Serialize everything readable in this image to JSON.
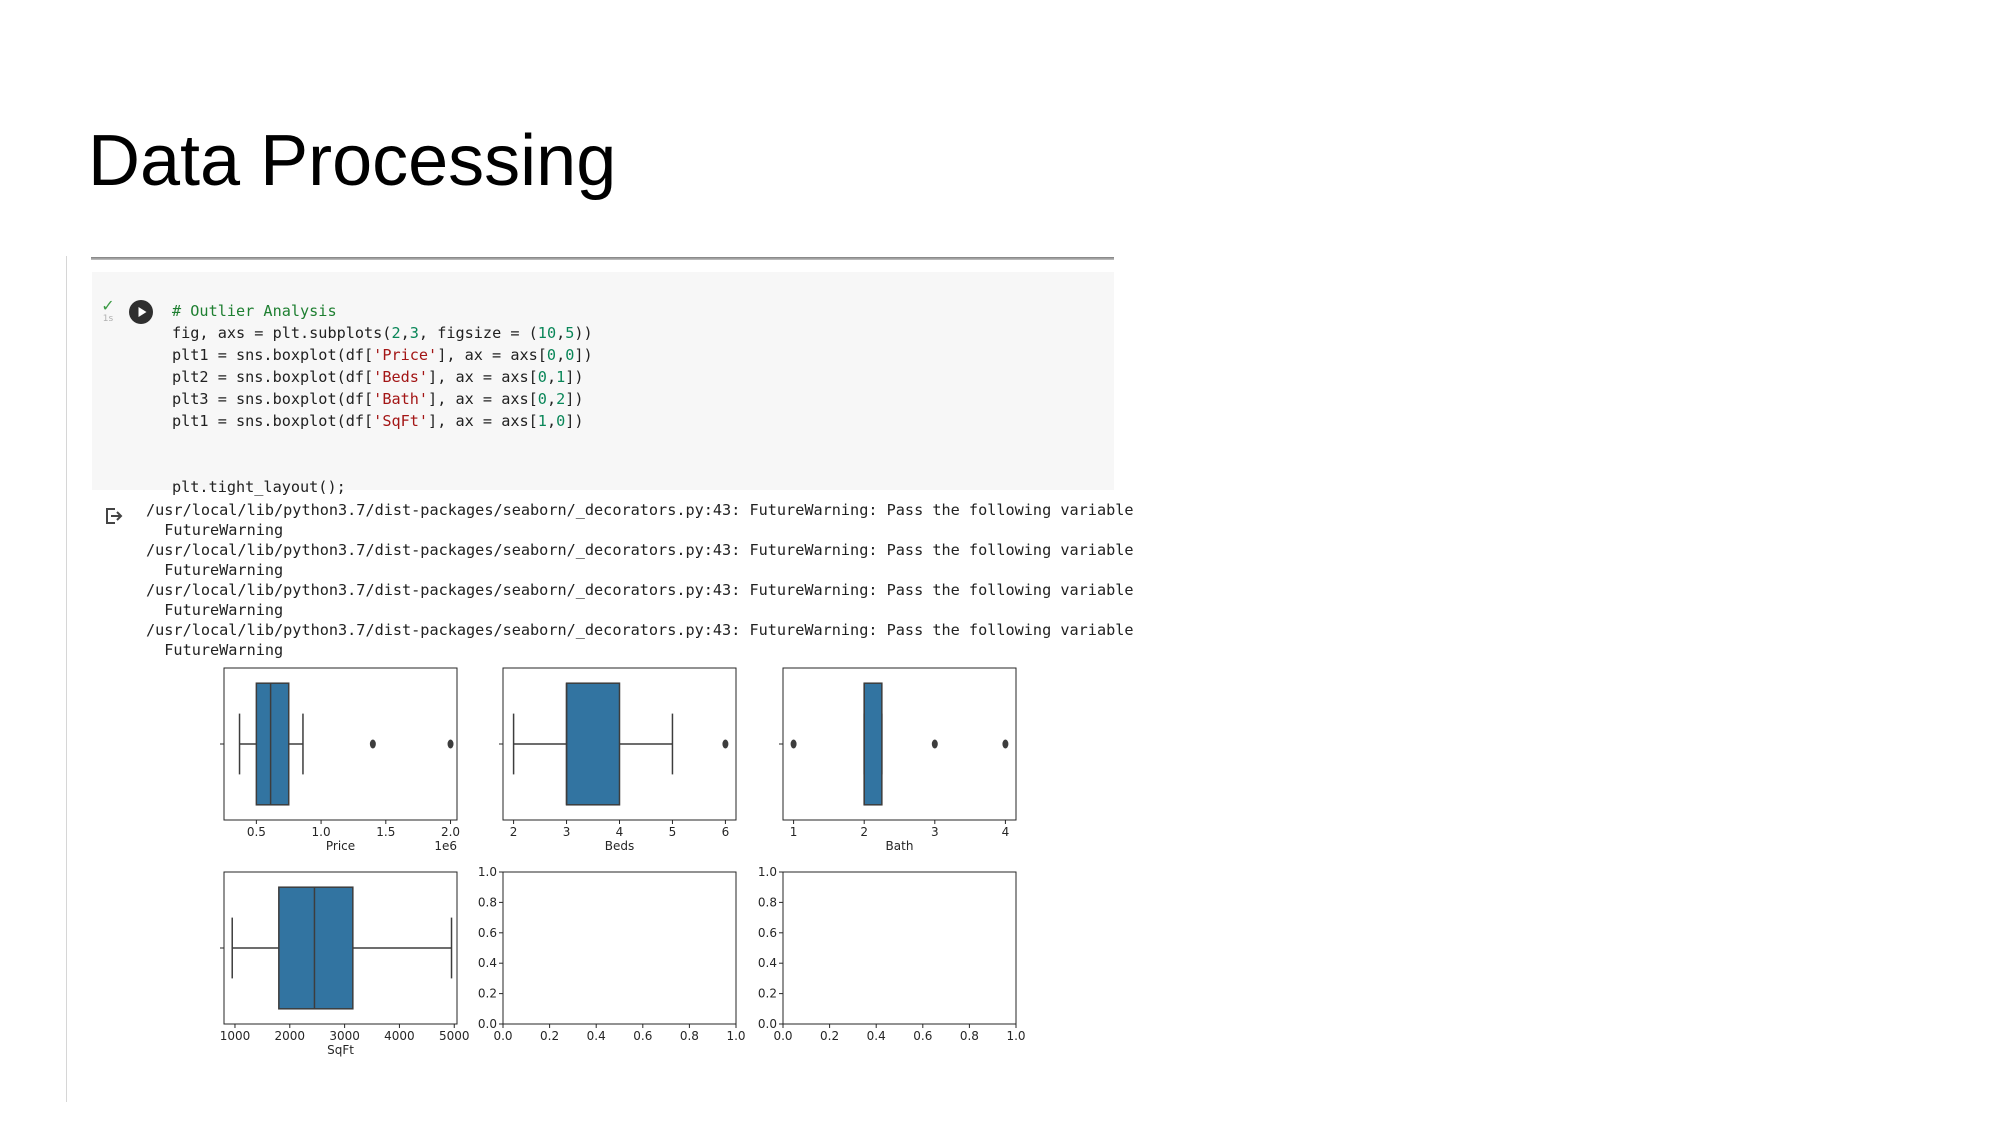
{
  "slide": {
    "title": "Data Processing"
  },
  "cell": {
    "status_icon": "check-icon",
    "exec_time": "1s",
    "run_icon": "play-circle-icon",
    "output_icon": "output-redirect-icon",
    "code": {
      "l1": "# Outlier Analysis",
      "l2a": "fig, axs = plt.subplots(",
      "l2n1": "2",
      "l2b": ",",
      "l2n2": "3",
      "l2c": ", figsize = (",
      "l2n3": "10",
      "l2d": ",",
      "l2n4": "5",
      "l2e": "))",
      "l3a": "plt1 = sns.boxplot(df[",
      "l3s": "'Price'",
      "l3b": "], ax = axs[",
      "l3n1": "0",
      "l3c": ",",
      "l3n2": "0",
      "l3d": "])",
      "l4a": "plt2 = sns.boxplot(df[",
      "l4s": "'Beds'",
      "l4b": "], ax = axs[",
      "l4n1": "0",
      "l4c": ",",
      "l4n2": "1",
      "l4d": "])",
      "l5a": "plt3 = sns.boxplot(df[",
      "l5s": "'Bath'",
      "l5b": "], ax = axs[",
      "l5n1": "0",
      "l5c": ",",
      "l5n2": "2",
      "l5d": "])",
      "l6a": "plt1 = sns.boxplot(df[",
      "l6s": "'SqFt'",
      "l6b": "], ax = axs[",
      "l6n1": "1",
      "l6c": ",",
      "l6n2": "0",
      "l6d": "])",
      "l9": "plt.tight_layout();"
    },
    "output_lines": [
      "/usr/local/lib/python3.7/dist-packages/seaborn/_decorators.py:43: FutureWarning: Pass the following variable",
      "  FutureWarning",
      "/usr/local/lib/python3.7/dist-packages/seaborn/_decorators.py:43: FutureWarning: Pass the following variable",
      "  FutureWarning",
      "/usr/local/lib/python3.7/dist-packages/seaborn/_decorators.py:43: FutureWarning: Pass the following variable",
      "  FutureWarning",
      "/usr/local/lib/python3.7/dist-packages/seaborn/_decorators.py:43: FutureWarning: Pass the following variable",
      "  FutureWarning"
    ]
  },
  "chart_data": [
    {
      "type": "box",
      "xlabel": "Price",
      "offset_text": "1e6",
      "xlim": [
        0.25,
        2.05
      ],
      "xticks": [
        0.5,
        1.0,
        1.5,
        2.0
      ],
      "xtick_labels": [
        "0.5",
        "1.0",
        "1.5",
        "2.0"
      ],
      "box": {
        "whisker_low": 0.37,
        "q1": 0.5,
        "median": 0.61,
        "q3": 0.75,
        "whisker_high": 0.86
      },
      "outliers": [
        1.4,
        2.0
      ],
      "color": "#3274a1"
    },
    {
      "type": "box",
      "xlabel": "Beds",
      "xlim": [
        1.8,
        6.2
      ],
      "xticks": [
        2,
        3,
        4,
        5,
        6
      ],
      "xtick_labels": [
        "2",
        "3",
        "4",
        "5",
        "6"
      ],
      "box": {
        "whisker_low": 2,
        "q1": 3,
        "median": 3,
        "q3": 4,
        "whisker_high": 5
      },
      "outliers": [
        6
      ],
      "color": "#3274a1"
    },
    {
      "type": "box",
      "xlabel": "Bath",
      "xlim": [
        0.85,
        4.15
      ],
      "xticks": [
        1,
        2,
        3,
        4
      ],
      "xtick_labels": [
        "1",
        "2",
        "3",
        "4"
      ],
      "box": {
        "whisker_low": 2,
        "q1": 2,
        "median": 2,
        "q3": 2.25,
        "whisker_high": 2.25
      },
      "outliers": [
        1,
        3,
        4
      ],
      "color": "#3274a1"
    },
    {
      "type": "box",
      "xlabel": "SqFt",
      "xlim": [
        800,
        5050
      ],
      "xticks": [
        1000,
        2000,
        3000,
        4000,
        5000
      ],
      "xtick_labels": [
        "1000",
        "2000",
        "3000",
        "4000",
        "5000"
      ],
      "box": {
        "whisker_low": 950,
        "q1": 1800,
        "median": 2450,
        "q3": 3150,
        "whisker_high": 4950
      },
      "outliers": [],
      "color": "#3274a1"
    },
    {
      "type": "empty",
      "xlim": [
        0,
        1
      ],
      "ylim": [
        0,
        1
      ],
      "xticks": [
        0,
        0.2,
        0.4,
        0.6,
        0.8,
        1.0
      ],
      "xtick_labels": [
        "0.0",
        "0.2",
        "0.4",
        "0.6",
        "0.8",
        "1.0"
      ],
      "yticks": [
        0,
        0.2,
        0.4,
        0.6,
        0.8,
        1.0
      ],
      "ytick_labels": [
        "0.0",
        "0.2",
        "0.4",
        "0.6",
        "0.8",
        "1.0"
      ]
    },
    {
      "type": "empty",
      "xlim": [
        0,
        1
      ],
      "ylim": [
        0,
        1
      ],
      "xticks": [
        0,
        0.2,
        0.4,
        0.6,
        0.8,
        1.0
      ],
      "xtick_labels": [
        "0.0",
        "0.2",
        "0.4",
        "0.6",
        "0.8",
        "1.0"
      ],
      "yticks": [
        0,
        0.2,
        0.4,
        0.6,
        0.8,
        1.0
      ],
      "ytick_labels": [
        "0.0",
        "0.2",
        "0.4",
        "0.6",
        "0.8",
        "1.0"
      ]
    }
  ]
}
